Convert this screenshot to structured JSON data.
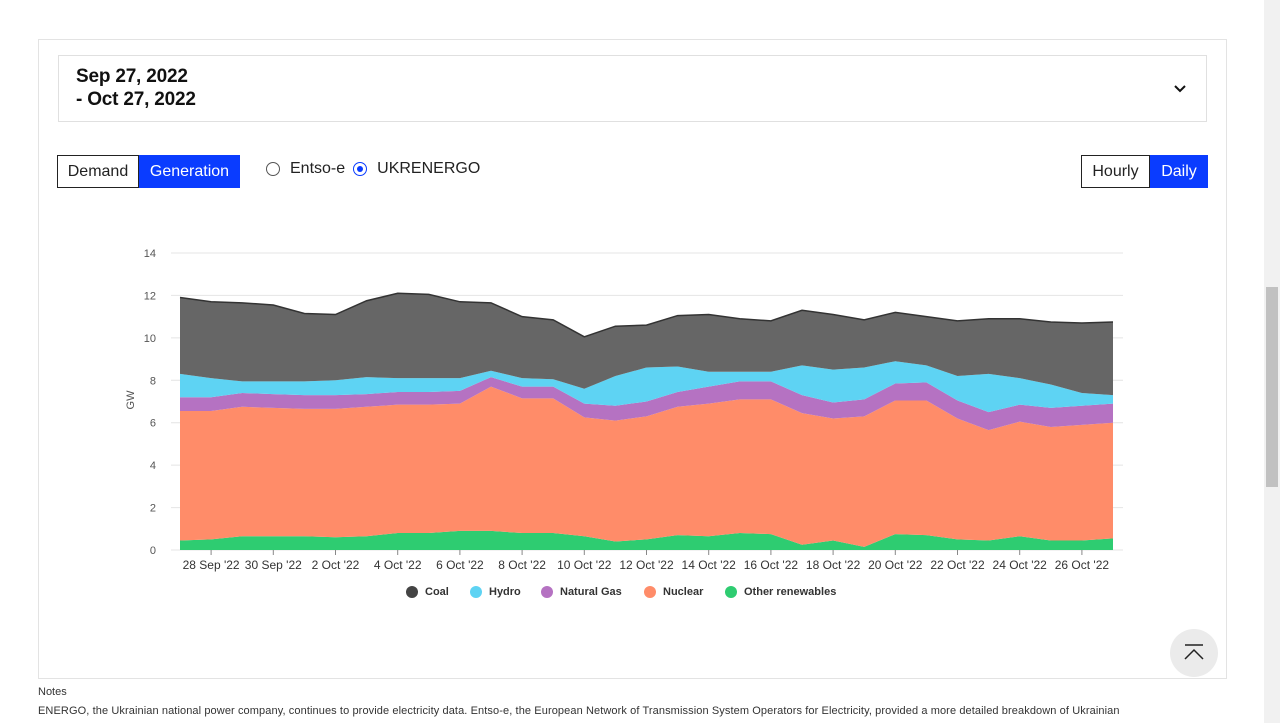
{
  "date_range": {
    "line1": "Sep 27, 2022",
    "line2": "- Oct 27, 2022"
  },
  "toggle_left": {
    "demand": "Demand",
    "generation": "Generation",
    "active": "Generation"
  },
  "source": {
    "options": [
      "Entso-e",
      "UKRENERGO"
    ],
    "selected": "UKRENERGO"
  },
  "toggle_right": {
    "hourly": "Hourly",
    "daily": "Daily",
    "active": "Daily"
  },
  "chart_data": {
    "type": "area",
    "stacked": true,
    "title": "",
    "xlabel": "",
    "ylabel": "GW",
    "ylim": [
      0,
      14
    ],
    "yticks": [
      0,
      2,
      4,
      6,
      8,
      10,
      12,
      14
    ],
    "grid": true,
    "legend_position": "bottom",
    "x": [
      "27 Sep",
      "28 Sep",
      "29 Sep",
      "30 Sep",
      "1 Oct",
      "2 Oct",
      "3 Oct",
      "4 Oct",
      "5 Oct",
      "6 Oct",
      "7 Oct",
      "8 Oct",
      "9 Oct",
      "10 Oct",
      "11 Oct",
      "12 Oct",
      "13 Oct",
      "14 Oct",
      "15 Oct",
      "16 Oct",
      "17 Oct",
      "18 Oct",
      "19 Oct",
      "20 Oct",
      "21 Oct",
      "22 Oct",
      "23 Oct",
      "24 Oct",
      "25 Oct",
      "26 Oct",
      "27 Oct"
    ],
    "xtick_labels": [
      "28 Sep '22",
      "30 Sep '22",
      "2 Oct '22",
      "4 Oct '22",
      "6 Oct '22",
      "8 Oct '22",
      "10 Oct '22",
      "12 Oct '22",
      "14 Oct '22",
      "16 Oct '22",
      "18 Oct '22",
      "20 Oct '22",
      "22 Oct '22",
      "24 Oct '22",
      "26 Oct '22"
    ],
    "series": [
      {
        "name": "Other renewables",
        "color": "#2ecc71",
        "values": [
          0.45,
          0.5,
          0.65,
          0.65,
          0.65,
          0.6,
          0.65,
          0.8,
          0.8,
          0.9,
          0.9,
          0.8,
          0.8,
          0.65,
          0.4,
          0.5,
          0.7,
          0.65,
          0.8,
          0.75,
          0.25,
          0.45,
          0.15,
          0.75,
          0.7,
          0.5,
          0.45,
          0.65,
          0.45,
          0.45,
          0.55
        ]
      },
      {
        "name": "Nuclear",
        "color": "#ff8c69",
        "values": [
          6.1,
          6.05,
          6.1,
          6.05,
          6.0,
          6.05,
          6.1,
          6.05,
          6.05,
          6.0,
          6.8,
          6.35,
          6.35,
          5.6,
          5.7,
          5.8,
          6.05,
          6.25,
          6.3,
          6.35,
          6.2,
          5.75,
          6.15,
          6.3,
          6.35,
          5.7,
          5.2,
          5.4,
          5.35,
          5.45,
          5.45
        ]
      },
      {
        "name": "Natural Gas",
        "color": "#b572c2",
        "values": [
          0.65,
          0.65,
          0.65,
          0.65,
          0.65,
          0.65,
          0.6,
          0.6,
          0.6,
          0.6,
          0.45,
          0.55,
          0.55,
          0.65,
          0.7,
          0.7,
          0.7,
          0.8,
          0.85,
          0.85,
          0.85,
          0.75,
          0.8,
          0.8,
          0.85,
          0.85,
          0.85,
          0.8,
          0.9,
          0.9,
          0.9
        ]
      },
      {
        "name": "Hydro",
        "color": "#5ed3f3",
        "values": [
          1.1,
          0.9,
          0.55,
          0.6,
          0.65,
          0.7,
          0.8,
          0.65,
          0.65,
          0.6,
          0.3,
          0.4,
          0.35,
          0.7,
          1.4,
          1.6,
          1.2,
          0.7,
          0.45,
          0.45,
          1.4,
          1.55,
          1.5,
          1.05,
          0.8,
          1.15,
          1.8,
          1.25,
          1.1,
          0.6,
          0.4
        ]
      },
      {
        "name": "Coal",
        "color": "#666666",
        "values": [
          3.6,
          3.6,
          3.7,
          3.6,
          3.2,
          3.1,
          3.6,
          4.0,
          3.95,
          3.6,
          3.2,
          2.9,
          2.8,
          2.45,
          2.35,
          2.0,
          2.4,
          2.7,
          2.5,
          2.4,
          2.6,
          2.6,
          2.25,
          2.3,
          2.3,
          2.6,
          2.6,
          2.8,
          2.95,
          3.3,
          3.45
        ]
      }
    ],
    "legend": [
      {
        "name": "Coal",
        "color": "#444444"
      },
      {
        "name": "Hydro",
        "color": "#5ed3f3"
      },
      {
        "name": "Natural Gas",
        "color": "#b572c2"
      },
      {
        "name": "Nuclear",
        "color": "#ff8c69"
      },
      {
        "name": "Other renewables",
        "color": "#2ecc71"
      }
    ]
  },
  "notes": {
    "title": "Notes",
    "text": "ENERGO, the Ukrainian national power company, continues to provide electricity data. Entso-e, the European Network of Transmission System Operators for Electricity, provided a more detailed breakdown of Ukrainian"
  }
}
